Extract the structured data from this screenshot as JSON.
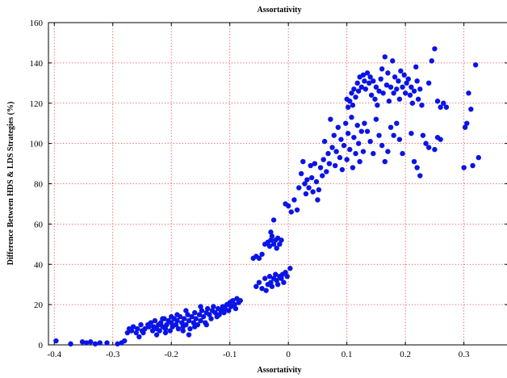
{
  "chart_data": {
    "type": "scatter",
    "title": "Assortativity",
    "xlabel": "Assortativity",
    "ylabel": "Difference Between HDS & LDS Strategies (%)",
    "xlim": [
      -0.41,
      0.375
    ],
    "ylim": [
      0,
      160
    ],
    "xticks": [
      -0.4,
      -0.3,
      -0.2,
      -0.1,
      0,
      0.1,
      0.2,
      0.3
    ],
    "xtick_labels": [
      "-0.4",
      "-0.3",
      "-0.2",
      "-0.1",
      "0",
      "0.1",
      "0.2",
      "0.3"
    ],
    "yticks": [
      0,
      20,
      40,
      60,
      80,
      100,
      120,
      140,
      160
    ],
    "ytick_labels": [
      "0",
      "20",
      "40",
      "60",
      "80",
      "100",
      "120",
      "140",
      "160"
    ],
    "grid": true,
    "marker_color": "#0a14e6",
    "series": [
      {
        "points": [
          [
            -0.397,
            2
          ],
          [
            -0.372,
            0.5
          ],
          [
            -0.352,
            1.5
          ],
          [
            -0.345,
            1
          ],
          [
            -0.338,
            1.5
          ],
          [
            -0.33,
            0.5
          ],
          [
            -0.322,
            1
          ],
          [
            -0.31,
            1
          ],
          [
            -0.292,
            0.5
          ],
          [
            -0.285,
            1
          ],
          [
            -0.28,
            2
          ],
          [
            -0.275,
            6
          ],
          [
            -0.272,
            8
          ],
          [
            -0.268,
            7
          ],
          [
            -0.265,
            9
          ],
          [
            -0.26,
            6
          ],
          [
            -0.258,
            8
          ],
          [
            -0.255,
            4
          ],
          [
            -0.252,
            10
          ],
          [
            -0.25,
            7
          ],
          [
            -0.248,
            6
          ],
          [
            -0.245,
            8
          ],
          [
            -0.24,
            10
          ],
          [
            -0.238,
            9
          ],
          [
            -0.235,
            11
          ],
          [
            -0.232,
            7
          ],
          [
            -0.23,
            9
          ],
          [
            -0.228,
            12
          ],
          [
            -0.225,
            8
          ],
          [
            -0.222,
            10
          ],
          [
            -0.22,
            7
          ],
          [
            -0.218,
            11
          ],
          [
            -0.215,
            9
          ],
          [
            -0.212,
            13
          ],
          [
            -0.21,
            8
          ],
          [
            -0.208,
            10
          ],
          [
            -0.205,
            12
          ],
          [
            -0.202,
            7
          ],
          [
            -0.2,
            11
          ],
          [
            -0.198,
            9
          ],
          [
            -0.195,
            13
          ],
          [
            -0.192,
            10
          ],
          [
            -0.19,
            12
          ],
          [
            -0.188,
            8
          ],
          [
            -0.185,
            14
          ],
          [
            -0.182,
            11
          ],
          [
            -0.18,
            9
          ],
          [
            -0.178,
            13
          ],
          [
            -0.175,
            10
          ],
          [
            -0.172,
            15
          ],
          [
            -0.17,
            12
          ],
          [
            -0.168,
            8
          ],
          [
            -0.165,
            14
          ],
          [
            -0.162,
            11
          ],
          [
            -0.16,
            16
          ],
          [
            -0.158,
            13
          ],
          [
            -0.155,
            10
          ],
          [
            -0.152,
            15
          ],
          [
            -0.15,
            12
          ],
          [
            -0.148,
            17
          ],
          [
            -0.145,
            14
          ],
          [
            -0.142,
            11
          ],
          [
            -0.14,
            16
          ],
          [
            -0.138,
            18
          ],
          [
            -0.135,
            15
          ],
          [
            -0.132,
            13
          ],
          [
            -0.13,
            17
          ],
          [
            -0.128,
            19
          ],
          [
            -0.125,
            16
          ],
          [
            -0.122,
            14
          ],
          [
            -0.12,
            18
          ],
          [
            -0.118,
            15
          ],
          [
            -0.115,
            17
          ],
          [
            -0.112,
            19
          ],
          [
            -0.11,
            16
          ],
          [
            -0.108,
            18
          ],
          [
            -0.105,
            20
          ],
          [
            -0.102,
            17
          ],
          [
            -0.1,
            21
          ],
          [
            -0.098,
            19
          ],
          [
            -0.095,
            22
          ],
          [
            -0.092,
            20
          ],
          [
            -0.09,
            18
          ],
          [
            -0.088,
            23
          ],
          [
            -0.085,
            21
          ],
          [
            -0.082,
            22
          ],
          [
            -0.21,
            6
          ],
          [
            -0.18,
            7
          ],
          [
            -0.16,
            9
          ],
          [
            -0.19,
            15
          ],
          [
            -0.2,
            14
          ],
          [
            -0.175,
            17
          ],
          [
            -0.15,
            19
          ],
          [
            -0.14,
            10
          ],
          [
            -0.17,
            5
          ],
          [
            -0.215,
            13
          ],
          [
            -0.225,
            5
          ],
          [
            -0.055,
            29
          ],
          [
            -0.05,
            31
          ],
          [
            -0.045,
            28
          ],
          [
            -0.04,
            33
          ],
          [
            -0.035,
            30
          ],
          [
            -0.032,
            34
          ],
          [
            -0.03,
            31
          ],
          [
            -0.028,
            29
          ],
          [
            -0.025,
            33
          ],
          [
            -0.022,
            35
          ],
          [
            -0.02,
            32
          ],
          [
            -0.018,
            30
          ],
          [
            -0.015,
            34
          ],
          [
            -0.012,
            33
          ],
          [
            -0.01,
            35
          ],
          [
            -0.008,
            31
          ],
          [
            -0.005,
            36
          ],
          [
            -0.002,
            34
          ],
          [
            0.003,
            38
          ],
          [
            -0.038,
            27
          ],
          [
            -0.06,
            43
          ],
          [
            -0.055,
            44
          ],
          [
            -0.05,
            43
          ],
          [
            -0.045,
            45
          ],
          [
            -0.04,
            50
          ],
          [
            -0.035,
            51
          ],
          [
            -0.032,
            49
          ],
          [
            -0.03,
            52
          ],
          [
            -0.028,
            54
          ],
          [
            -0.025,
            50
          ],
          [
            -0.022,
            52
          ],
          [
            -0.02,
            48
          ],
          [
            -0.018,
            53
          ],
          [
            -0.015,
            50
          ],
          [
            -0.012,
            52
          ],
          [
            -0.025,
            62
          ],
          [
            -0.03,
            56
          ],
          [
            -0.005,
            70
          ],
          [
            0,
            69
          ],
          [
            0.005,
            66
          ],
          [
            0.01,
            72
          ],
          [
            0.015,
            67
          ],
          [
            0.018,
            78
          ],
          [
            0.022,
            85
          ],
          [
            0.025,
            91
          ],
          [
            0.028,
            80
          ],
          [
            0.03,
            75
          ],
          [
            0.032,
            82
          ],
          [
            0.035,
            78
          ],
          [
            0.038,
            89
          ],
          [
            0.04,
            83
          ],
          [
            0.042,
            76
          ],
          [
            0.045,
            90
          ],
          [
            0.048,
            81
          ],
          [
            0.05,
            72
          ],
          [
            0.052,
            77
          ],
          [
            0.055,
            88
          ],
          [
            0.058,
            84
          ],
          [
            0.06,
            92
          ],
          [
            0.062,
            101
          ],
          [
            0.065,
            86
          ],
          [
            0.068,
            95
          ],
          [
            0.07,
            90
          ],
          [
            0.072,
            112
          ],
          [
            0.075,
            98
          ],
          [
            0.078,
            104
          ],
          [
            0.08,
            89
          ],
          [
            0.082,
            96
          ],
          [
            0.085,
            108
          ],
          [
            0.088,
            93
          ],
          [
            0.09,
            102
          ],
          [
            0.092,
            87
          ],
          [
            0.095,
            99
          ],
          [
            0.098,
            110
          ],
          [
            0.1,
            92
          ],
          [
            0.102,
            105
          ],
          [
            0.105,
            97
          ],
          [
            0.108,
            113
          ],
          [
            0.11,
            88
          ],
          [
            0.112,
            103
          ],
          [
            0.115,
            95
          ],
          [
            0.118,
            109
          ],
          [
            0.12,
            100
          ],
          [
            0.122,
            91
          ],
          [
            0.125,
            106
          ],
          [
            0.128,
            96
          ],
          [
            0.1,
            122
          ],
          [
            0.102,
            118
          ],
          [
            0.105,
            121
          ],
          [
            0.108,
            125
          ],
          [
            0.11,
            119
          ],
          [
            0.112,
            127
          ],
          [
            0.115,
            123
          ],
          [
            0.118,
            130
          ],
          [
            0.12,
            126
          ],
          [
            0.122,
            133
          ],
          [
            0.125,
            128
          ],
          [
            0.128,
            134
          ],
          [
            0.13,
            131
          ],
          [
            0.132,
            127
          ],
          [
            0.135,
            135
          ],
          [
            0.138,
            130
          ],
          [
            0.14,
            133
          ],
          [
            0.142,
            124
          ],
          [
            0.145,
            131
          ],
          [
            0.148,
            122
          ],
          [
            0.15,
            128
          ],
          [
            0.152,
            119
          ],
          [
            0.155,
            126
          ],
          [
            0.158,
            132
          ],
          [
            0.16,
            137
          ],
          [
            0.162,
            125
          ],
          [
            0.165,
            143
          ],
          [
            0.168,
            129
          ],
          [
            0.17,
            135
          ],
          [
            0.172,
            121
          ],
          [
            0.175,
            128
          ],
          [
            0.178,
            141
          ],
          [
            0.18,
            125
          ],
          [
            0.182,
            133
          ],
          [
            0.185,
            127
          ],
          [
            0.188,
            131
          ],
          [
            0.19,
            122
          ],
          [
            0.192,
            136
          ],
          [
            0.195,
            128
          ],
          [
            0.198,
            134
          ],
          [
            0.2,
            125
          ],
          [
            0.202,
            130
          ],
          [
            0.205,
            132
          ],
          [
            0.208,
            124
          ],
          [
            0.21,
            128
          ],
          [
            0.212,
            120
          ],
          [
            0.215,
            126
          ],
          [
            0.218,
            138
          ],
          [
            0.22,
            131
          ],
          [
            0.222,
            122
          ],
          [
            0.225,
            127
          ],
          [
            0.228,
            119
          ],
          [
            0.24,
            130
          ],
          [
            0.245,
            141
          ],
          [
            0.25,
            147
          ],
          [
            0.255,
            121
          ],
          [
            0.26,
            118
          ],
          [
            0.265,
            120
          ],
          [
            0.27,
            118
          ],
          [
            0.13,
            110
          ],
          [
            0.135,
            106
          ],
          [
            0.14,
            101
          ],
          [
            0.145,
            95
          ],
          [
            0.15,
            112
          ],
          [
            0.155,
            104
          ],
          [
            0.16,
            99
          ],
          [
            0.165,
            91
          ],
          [
            0.17,
            96
          ],
          [
            0.175,
            108
          ],
          [
            0.18,
            104
          ],
          [
            0.185,
            110
          ],
          [
            0.19,
            102
          ],
          [
            0.195,
            95
          ],
          [
            0.21,
            105
          ],
          [
            0.215,
            91
          ],
          [
            0.22,
            88
          ],
          [
            0.225,
            84
          ],
          [
            0.23,
            104
          ],
          [
            0.235,
            100
          ],
          [
            0.24,
            98
          ],
          [
            0.25,
            97
          ],
          [
            0.255,
            103
          ],
          [
            0.26,
            102
          ],
          [
            0.3,
            88
          ],
          [
            0.302,
            108
          ],
          [
            0.305,
            110
          ],
          [
            0.308,
            125
          ],
          [
            0.312,
            117
          ],
          [
            0.315,
            89
          ],
          [
            0.32,
            139
          ],
          [
            0.325,
            93
          ]
        ]
      }
    ]
  }
}
